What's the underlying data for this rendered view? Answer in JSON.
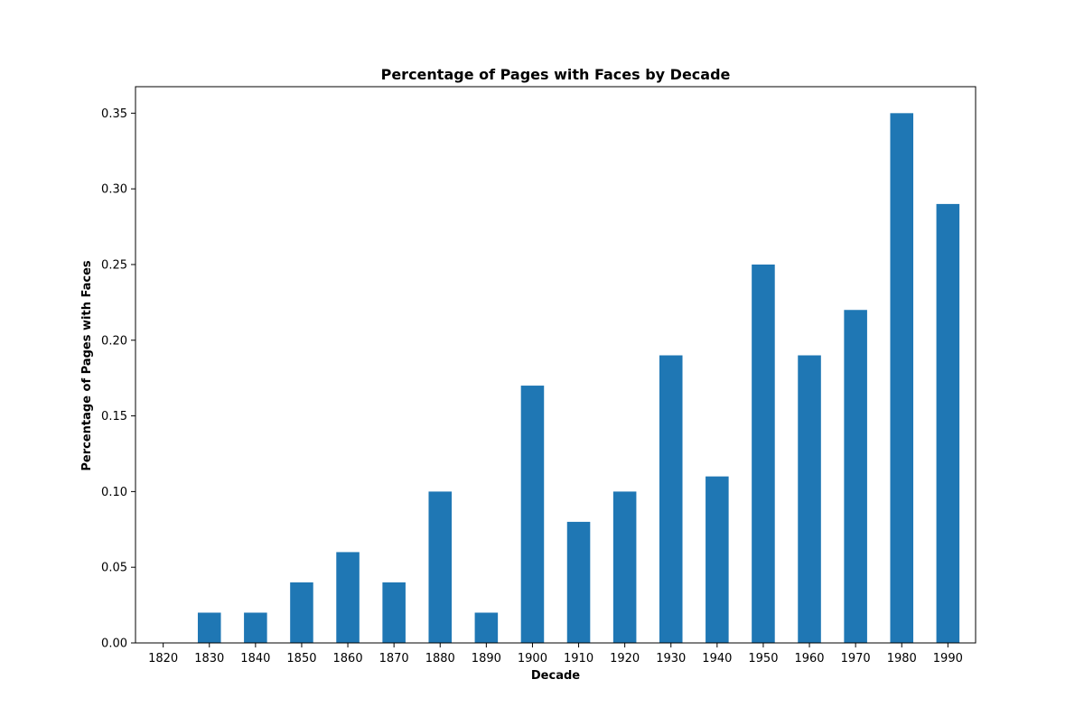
{
  "chart_data": {
    "type": "bar",
    "title": "Percentage of Pages with Faces by Decade",
    "xlabel": "Decade",
    "ylabel": "Percentage of Pages with Faces",
    "categories": [
      "1820",
      "1830",
      "1840",
      "1850",
      "1860",
      "1870",
      "1880",
      "1890",
      "1900",
      "1910",
      "1920",
      "1930",
      "1940",
      "1950",
      "1960",
      "1970",
      "1980",
      "1990"
    ],
    "values": [
      0.0,
      0.02,
      0.02,
      0.04,
      0.06,
      0.04,
      0.1,
      0.02,
      0.17,
      0.08,
      0.1,
      0.19,
      0.11,
      0.25,
      0.19,
      0.22,
      0.35,
      0.29
    ],
    "ylim": [
      0,
      0.3675
    ],
    "yticks": [
      "0.00",
      "0.05",
      "0.10",
      "0.15",
      "0.20",
      "0.25",
      "0.30",
      "0.35"
    ],
    "bar_color": "#1f77b4",
    "grid": false,
    "legend": "none"
  }
}
